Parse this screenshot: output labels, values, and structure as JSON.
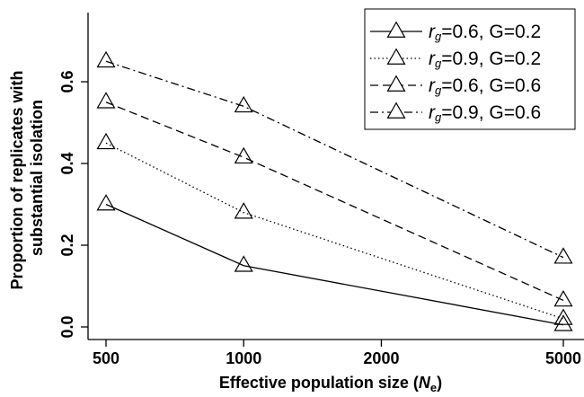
{
  "chart_data": {
    "type": "line",
    "x_scale": "log",
    "x": [
      500,
      1000,
      5000
    ],
    "x_ticks": [
      500,
      1000,
      2000,
      5000
    ],
    "x_tick_labels": [
      "500",
      "1000",
      "2000",
      "5000"
    ],
    "y_ticks": [
      0.0,
      0.2,
      0.4,
      0.6
    ],
    "y_tick_labels": [
      "0.0",
      "0.2",
      "0.4",
      "0.6"
    ],
    "xlim": [
      500,
      5000
    ],
    "ylim": [
      0.0,
      0.6
    ],
    "xlabel": "Effective population size (",
    "xlabel_var": "N",
    "xlabel_sub": "e",
    "xlabel_end": ")",
    "ylabel_line1": "Proportion of replicates with",
    "ylabel_line2": "substantial isolation",
    "marker": "open-triangle",
    "grid": false,
    "legend_position": "top-right",
    "series": [
      {
        "label_var": "r",
        "label_sub": "g",
        "label_text": "=0.6, G=0.2",
        "line_style": "solid",
        "values": [
          0.3,
          0.15,
          0.005
        ]
      },
      {
        "label_var": "r",
        "label_sub": "g",
        "label_text": "=0.9, G=0.2",
        "line_style": "dotted",
        "values": [
          0.45,
          0.28,
          0.02
        ]
      },
      {
        "label_var": "r",
        "label_sub": "g",
        "label_text": "=0.6, G=0.6",
        "line_style": "dashed",
        "values": [
          0.55,
          0.415,
          0.065
        ]
      },
      {
        "label_var": "r",
        "label_sub": "g",
        "label_text": "=0.9, G=0.6",
        "line_style": "dash-dot",
        "values": [
          0.65,
          0.54,
          0.17
        ]
      }
    ]
  }
}
